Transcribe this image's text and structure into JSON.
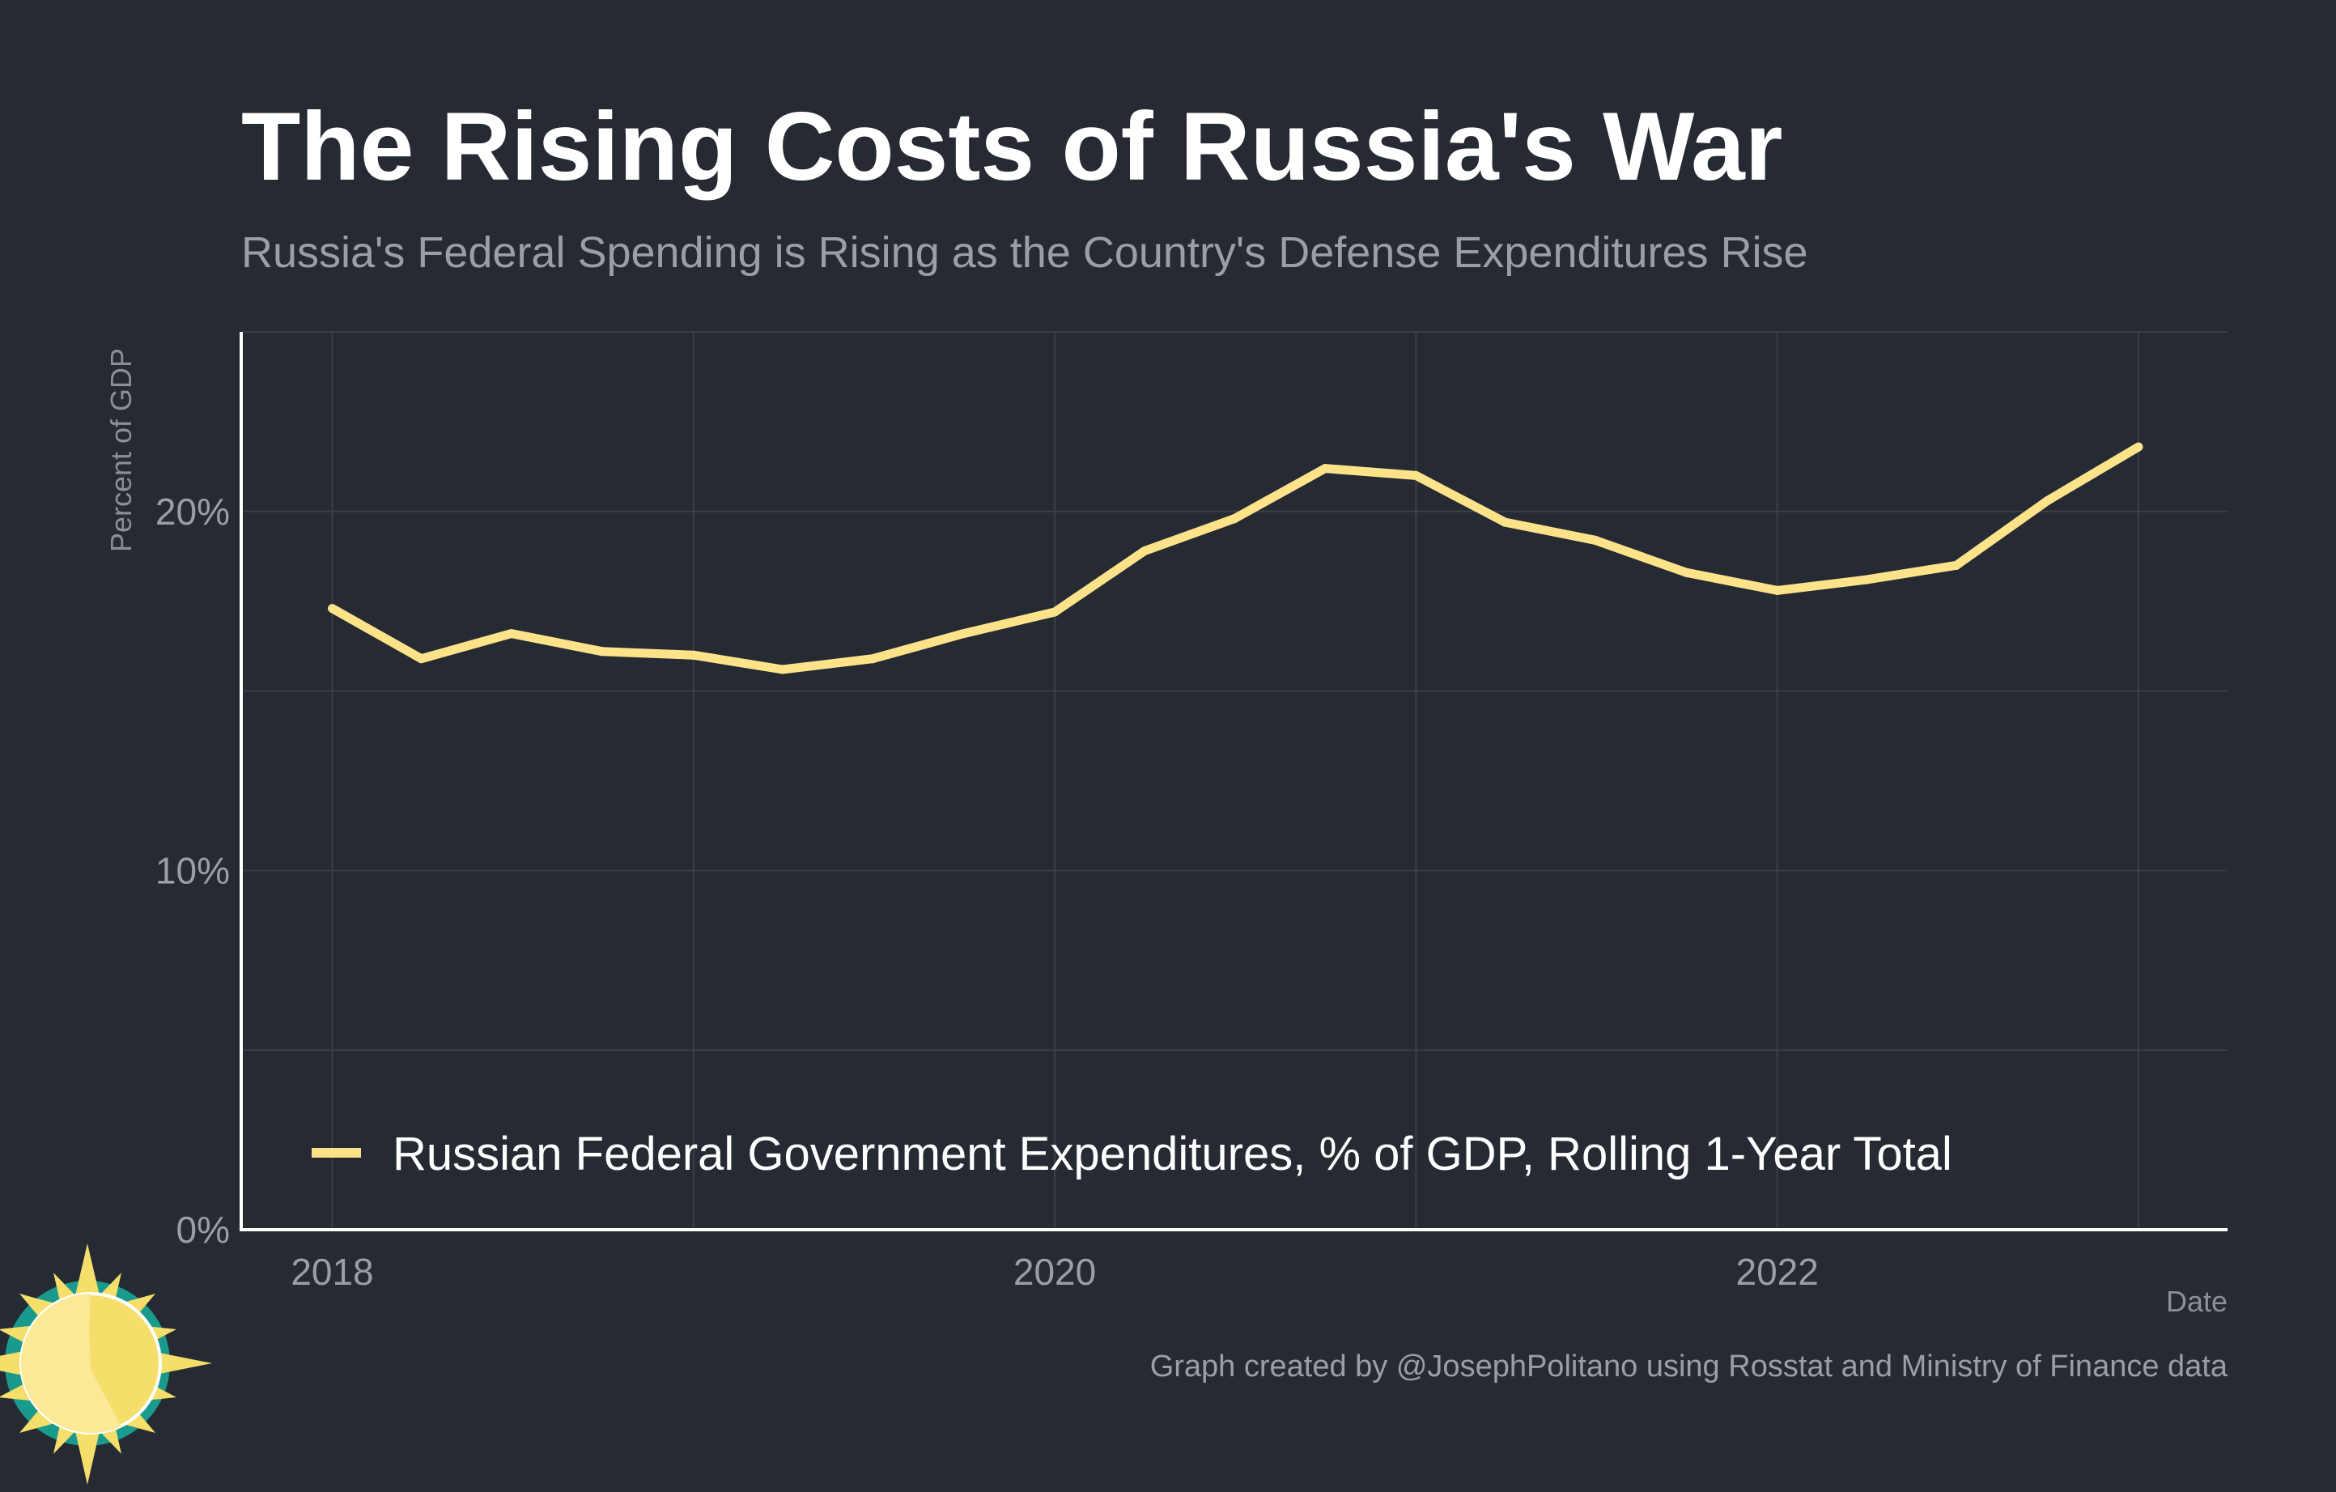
{
  "colors": {
    "background": "#252a33",
    "grid": "#3a3f49",
    "axis": "#ffffff",
    "series": "#fce38a",
    "logo_teal": "#1a9a8c",
    "logo_yellow": "#f5de6a",
    "logo_pale": "#fbe997"
  },
  "chart_data": {
    "type": "line",
    "title": "The Rising Costs of Russia's War",
    "subtitle": "Russia's Federal Spending is Rising as the Country's Defense Expenditures Rise",
    "xlabel": "Date",
    "ylabel": "Percent of GDP",
    "xlim": [
      "2017-10-01",
      "2023-04-01"
    ],
    "ylim": [
      0,
      25
    ],
    "x_ticks": [
      {
        "date": "2018-01-01",
        "label": "2018"
      },
      {
        "date": "2020-01-01",
        "label": "2020"
      },
      {
        "date": "2022-01-01",
        "label": "2022"
      }
    ],
    "y_ticks": [
      {
        "value": 0,
        "label": "0%"
      },
      {
        "value": 10,
        "label": "10%"
      },
      {
        "value": 20,
        "label": "20%"
      }
    ],
    "grid": true,
    "legend_position": "bottom-left inside plot",
    "series": [
      {
        "name": "Russian Federal Government Expenditures, % of GDP, Rolling 1-Year Total",
        "color": "#fce38a",
        "x": [
          "2018-01-01",
          "2018-04-01",
          "2018-07-01",
          "2018-10-01",
          "2019-01-01",
          "2019-04-01",
          "2019-07-01",
          "2019-10-01",
          "2020-01-01",
          "2020-04-01",
          "2020-07-01",
          "2020-10-01",
          "2021-01-01",
          "2021-04-01",
          "2021-07-01",
          "2021-10-01",
          "2022-01-01",
          "2022-04-01",
          "2022-07-01",
          "2022-10-01",
          "2023-01-01"
        ],
        "y": [
          17.3,
          15.9,
          16.6,
          16.1,
          16.0,
          15.6,
          15.9,
          16.6,
          17.2,
          18.9,
          19.8,
          21.2,
          21.0,
          19.7,
          19.2,
          18.3,
          17.8,
          18.1,
          18.5,
          20.3,
          21.8
        ]
      }
    ],
    "caption": "Graph created by @JosephPolitano using Rosstat and Ministry of Finance data"
  }
}
